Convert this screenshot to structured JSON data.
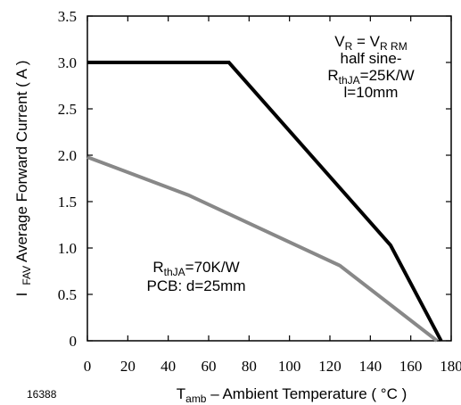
{
  "figure_id": "16388",
  "chart_data": {
    "type": "line",
    "xlabel": {
      "main": "T",
      "sub": "amb",
      "rest": " – Ambient Temperature ( °C )"
    },
    "ylabel": {
      "main": "I",
      "sub": "FAV",
      "rest": " Average Forward Current ( A )"
    },
    "xlim": [
      0,
      180
    ],
    "ylim": [
      0,
      3.5
    ],
    "xticks": [
      {
        "v": 0,
        "label": "0"
      },
      {
        "v": 20,
        "label": "20"
      },
      {
        "v": 40,
        "label": "40"
      },
      {
        "v": 60,
        "label": "60"
      },
      {
        "v": 80,
        "label": "80"
      },
      {
        "v": 100,
        "label": "100"
      },
      {
        "v": 120,
        "label": "120"
      },
      {
        "v": 140,
        "label": "140"
      },
      {
        "v": 160,
        "label": "160"
      },
      {
        "v": 180,
        "label": "180"
      }
    ],
    "yticks": [
      {
        "v": 0,
        "label": "0"
      },
      {
        "v": 0.5,
        "label": "0.5"
      },
      {
        "v": 1.0,
        "label": "1.0"
      },
      {
        "v": 1.5,
        "label": "1.5"
      },
      {
        "v": 2.0,
        "label": "2.0"
      },
      {
        "v": 2.5,
        "label": "2.5"
      },
      {
        "v": 3.0,
        "label": "3.0"
      },
      {
        "v": 3.5,
        "label": "3.5"
      }
    ],
    "grid": false,
    "series": [
      {
        "color": "#000000",
        "x": [
          0,
          70,
          150,
          175
        ],
        "y": [
          3.0,
          3.0,
          1.03,
          0
        ]
      },
      {
        "color": "#888888",
        "x": [
          0,
          50,
          125,
          173
        ],
        "y": [
          1.98,
          1.57,
          0.81,
          0
        ]
      }
    ],
    "annotations": {
      "top_right": [
        {
          "parts": [
            {
              "t": "V",
              "sub": false
            },
            {
              "t": "R",
              "sub": true
            },
            {
              "t": " = V",
              "sub": false
            },
            {
              "t": "R RM",
              "sub": true
            }
          ]
        },
        {
          "parts": [
            {
              "t": "half sine-",
              "sub": false
            }
          ]
        },
        {
          "parts": [
            {
              "t": "R",
              "sub": false
            },
            {
              "t": "thJA",
              "sub": true
            },
            {
              "t": "=25K/W",
              "sub": false
            }
          ]
        },
        {
          "parts": [
            {
              "t": "l=10mm",
              "sub": false
            }
          ]
        }
      ],
      "bottom_left": [
        {
          "parts": [
            {
              "t": "R",
              "sub": false
            },
            {
              "t": "thJA",
              "sub": true
            },
            {
              "t": "=70K/W",
              "sub": false
            }
          ]
        },
        {
          "parts": [
            {
              "t": "PCB: d=25mm",
              "sub": false
            }
          ]
        }
      ]
    }
  }
}
